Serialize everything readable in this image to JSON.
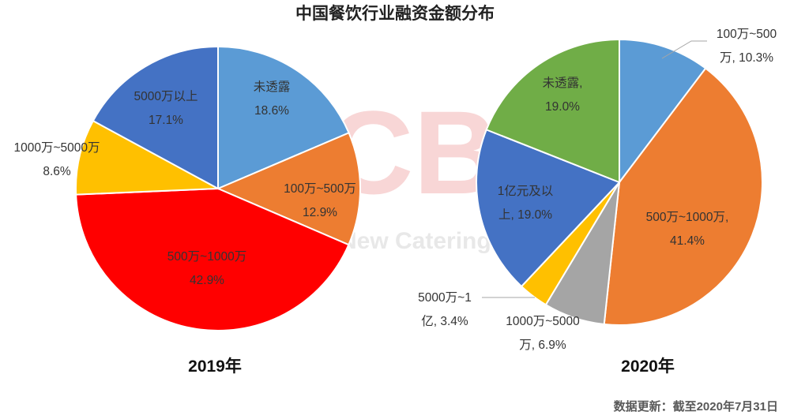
{
  "chart_data": [
    {
      "type": "pie",
      "title": "中国餐饮行业融资金额分布",
      "subtitle": "2019年",
      "slices": [
        {
          "label": "未透露",
          "value": 18.6,
          "display": "18.6%",
          "color": "#5b9bd5"
        },
        {
          "label": "100万~500万",
          "value": 12.9,
          "display": "12.9%",
          "color": "#ed7d31"
        },
        {
          "label": "500万~1000万",
          "value": 42.9,
          "display": "42.9%",
          "color": "#ff0000"
        },
        {
          "label": "1000万~5000万",
          "value": 8.6,
          "display": "8.6%",
          "color": "#ffc000"
        },
        {
          "label": "5000万以上",
          "value": 17.1,
          "display": "17.1%",
          "color": "#4472c4"
        }
      ]
    },
    {
      "type": "pie",
      "title": "中国餐饮行业融资金额分布",
      "subtitle": "2020年",
      "slices": [
        {
          "label": "100万~500万",
          "value": 10.3,
          "display": "10.3%",
          "color": "#5b9bd5"
        },
        {
          "label": "500万~1000万",
          "value": 41.4,
          "display": "41.4%",
          "color": "#ed7d31"
        },
        {
          "label": "1000万~5000万",
          "value": 6.9,
          "display": "6.9%",
          "color": "#a5a5a5"
        },
        {
          "label": "5000万~1亿",
          "value": 3.4,
          "display": "3.4%",
          "color": "#ffc000"
        },
        {
          "label": "1亿元及以上",
          "value": 19.0,
          "display": "19.0%",
          "color": "#4472c4"
        },
        {
          "label": "未透露",
          "value": 19.0,
          "display": "19.0%",
          "color": "#70ad47"
        }
      ]
    }
  ],
  "title": "中国餐饮行业融资金额分布",
  "year_2019": "2019年",
  "year_2020": "2020年",
  "footer": "数据更新：截至2020年7月31日",
  "watermark": "CBN",
  "watermark_sub": "New Catering",
  "labels_2019": {
    "l0a": "未透露",
    "l0b": "18.6%",
    "l1a": "100万~500万",
    "l1b": "12.9%",
    "l2a": "500万~1000万",
    "l2b": "42.9%",
    "l3a": "1000万~5000万",
    "l3b": "8.6%",
    "l4a": "5000万以上",
    "l4b": "17.1%"
  },
  "labels_2020": {
    "l0a": "100万~500",
    "l0b": "万, 10.3%",
    "l1a": "500万~1000万,",
    "l1b": "41.4%",
    "l2a": "1000万~5000",
    "l2b": "万, 6.9%",
    "l3a": "5000万~1",
    "l3b": "亿, 3.4%",
    "l4a": "1亿元及以",
    "l4b": "上, 19.0%",
    "l5a": "未透露,",
    "l5b": "19.0%"
  }
}
